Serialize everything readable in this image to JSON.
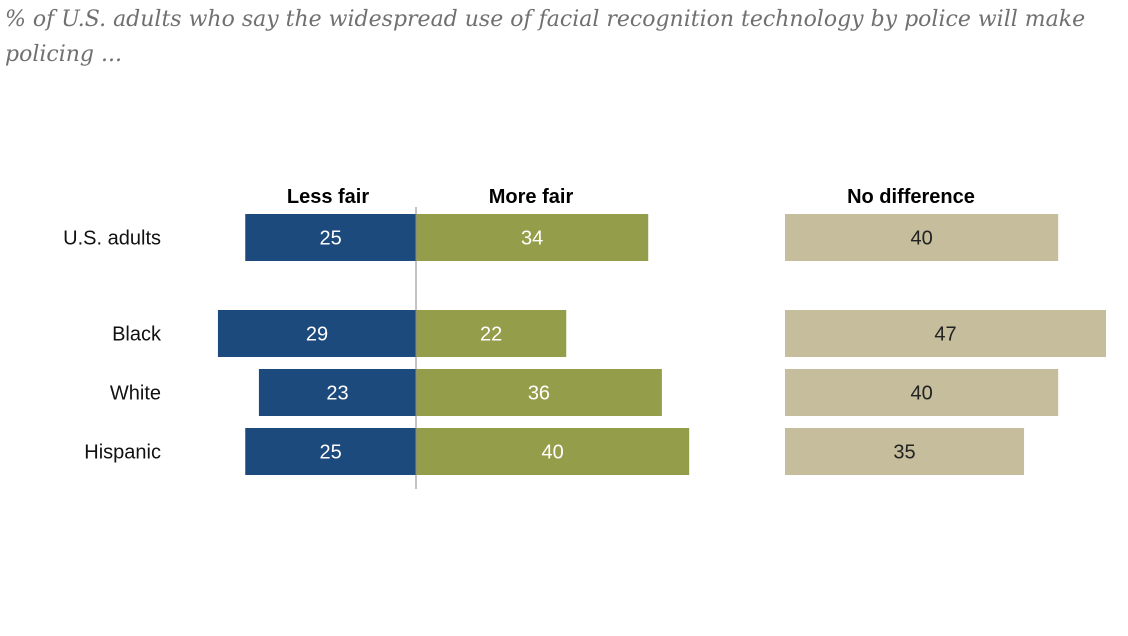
{
  "chart_data": {
    "type": "bar",
    "subtitle": "% of U.S. adults who say the widespread use of facial recognition technology by police will make policing ...",
    "categories": [
      "U.S. adults",
      "Black",
      "White",
      "Hispanic"
    ],
    "series": [
      {
        "name": "Less fair",
        "values": [
          25,
          29,
          23,
          25
        ],
        "color": "#1d4a7c",
        "label_color": "#ffffff"
      },
      {
        "name": "More fair",
        "values": [
          34,
          22,
          36,
          40
        ],
        "color": "#949e4a",
        "label_color": "#ffffff"
      },
      {
        "name": "No difference",
        "values": [
          40,
          47,
          40,
          35
        ],
        "color": "#c5bd9b",
        "label_color": "#222222"
      }
    ]
  }
}
